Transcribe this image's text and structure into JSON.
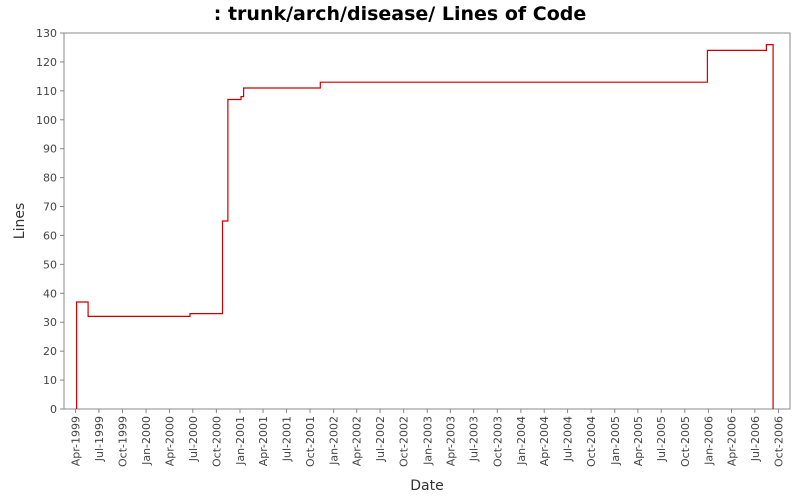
{
  "chart_data": {
    "type": "line",
    "title": ": trunk/arch/disease/ Lines of Code",
    "xlabel": "Date",
    "ylabel": "Lines",
    "ylim": [
      0,
      130
    ],
    "y_ticks": [
      0,
      10,
      20,
      30,
      40,
      50,
      60,
      70,
      80,
      90,
      100,
      110,
      120,
      130
    ],
    "xlim": [
      "1999-02-15",
      "2006-11-15"
    ],
    "x_ticks": [
      "Apr-1999",
      "Jul-1999",
      "Oct-1999",
      "Jan-2000",
      "Apr-2000",
      "Jul-2000",
      "Oct-2000",
      "Jan-2001",
      "Apr-2001",
      "Jul-2001",
      "Oct-2001",
      "Jan-2002",
      "Apr-2002",
      "Jul-2002",
      "Oct-2002",
      "Jan-2003",
      "Apr-2003",
      "Jul-2003",
      "Oct-2003",
      "Jan-2004",
      "Apr-2004",
      "Jul-2004",
      "Oct-2004",
      "Jan-2005",
      "Apr-2005",
      "Jul-2005",
      "Oct-2005",
      "Jan-2006",
      "Apr-2006",
      "Jul-2006",
      "Oct-2006"
    ],
    "x_tick_dates": [
      "1999-04-01",
      "1999-07-01",
      "1999-10-01",
      "2000-01-01",
      "2000-04-01",
      "2000-07-01",
      "2000-10-01",
      "2001-01-01",
      "2001-04-01",
      "2001-07-01",
      "2001-10-01",
      "2002-01-01",
      "2002-04-01",
      "2002-07-01",
      "2002-10-01",
      "2003-01-01",
      "2003-04-01",
      "2003-07-01",
      "2003-10-01",
      "2004-01-01",
      "2004-04-01",
      "2004-07-01",
      "2004-10-01",
      "2005-01-01",
      "2005-04-01",
      "2005-07-01",
      "2005-10-01",
      "2006-01-01",
      "2006-04-01",
      "2006-07-01",
      "2006-10-01"
    ],
    "grid": false,
    "step": true,
    "series": [
      {
        "color": "#cc0000",
        "points": [
          [
            "1999-04-05",
            0
          ],
          [
            "1999-04-05",
            37
          ],
          [
            "1999-05-20",
            37
          ],
          [
            "1999-05-20",
            32
          ],
          [
            "2000-06-20",
            32
          ],
          [
            "2000-06-20",
            33
          ],
          [
            "2000-10-25",
            33
          ],
          [
            "2000-10-25",
            65
          ],
          [
            "2000-11-15",
            65
          ],
          [
            "2000-11-15",
            107
          ],
          [
            "2001-01-05",
            107
          ],
          [
            "2001-01-05",
            108
          ],
          [
            "2001-01-15",
            108
          ],
          [
            "2001-01-15",
            111
          ],
          [
            "2001-11-10",
            111
          ],
          [
            "2001-11-10",
            113
          ],
          [
            "2005-12-28",
            113
          ],
          [
            "2005-12-28",
            124
          ],
          [
            "2006-08-15",
            124
          ],
          [
            "2006-08-15",
            126
          ],
          [
            "2006-09-10",
            126
          ],
          [
            "2006-09-10",
            0
          ]
        ]
      }
    ]
  }
}
